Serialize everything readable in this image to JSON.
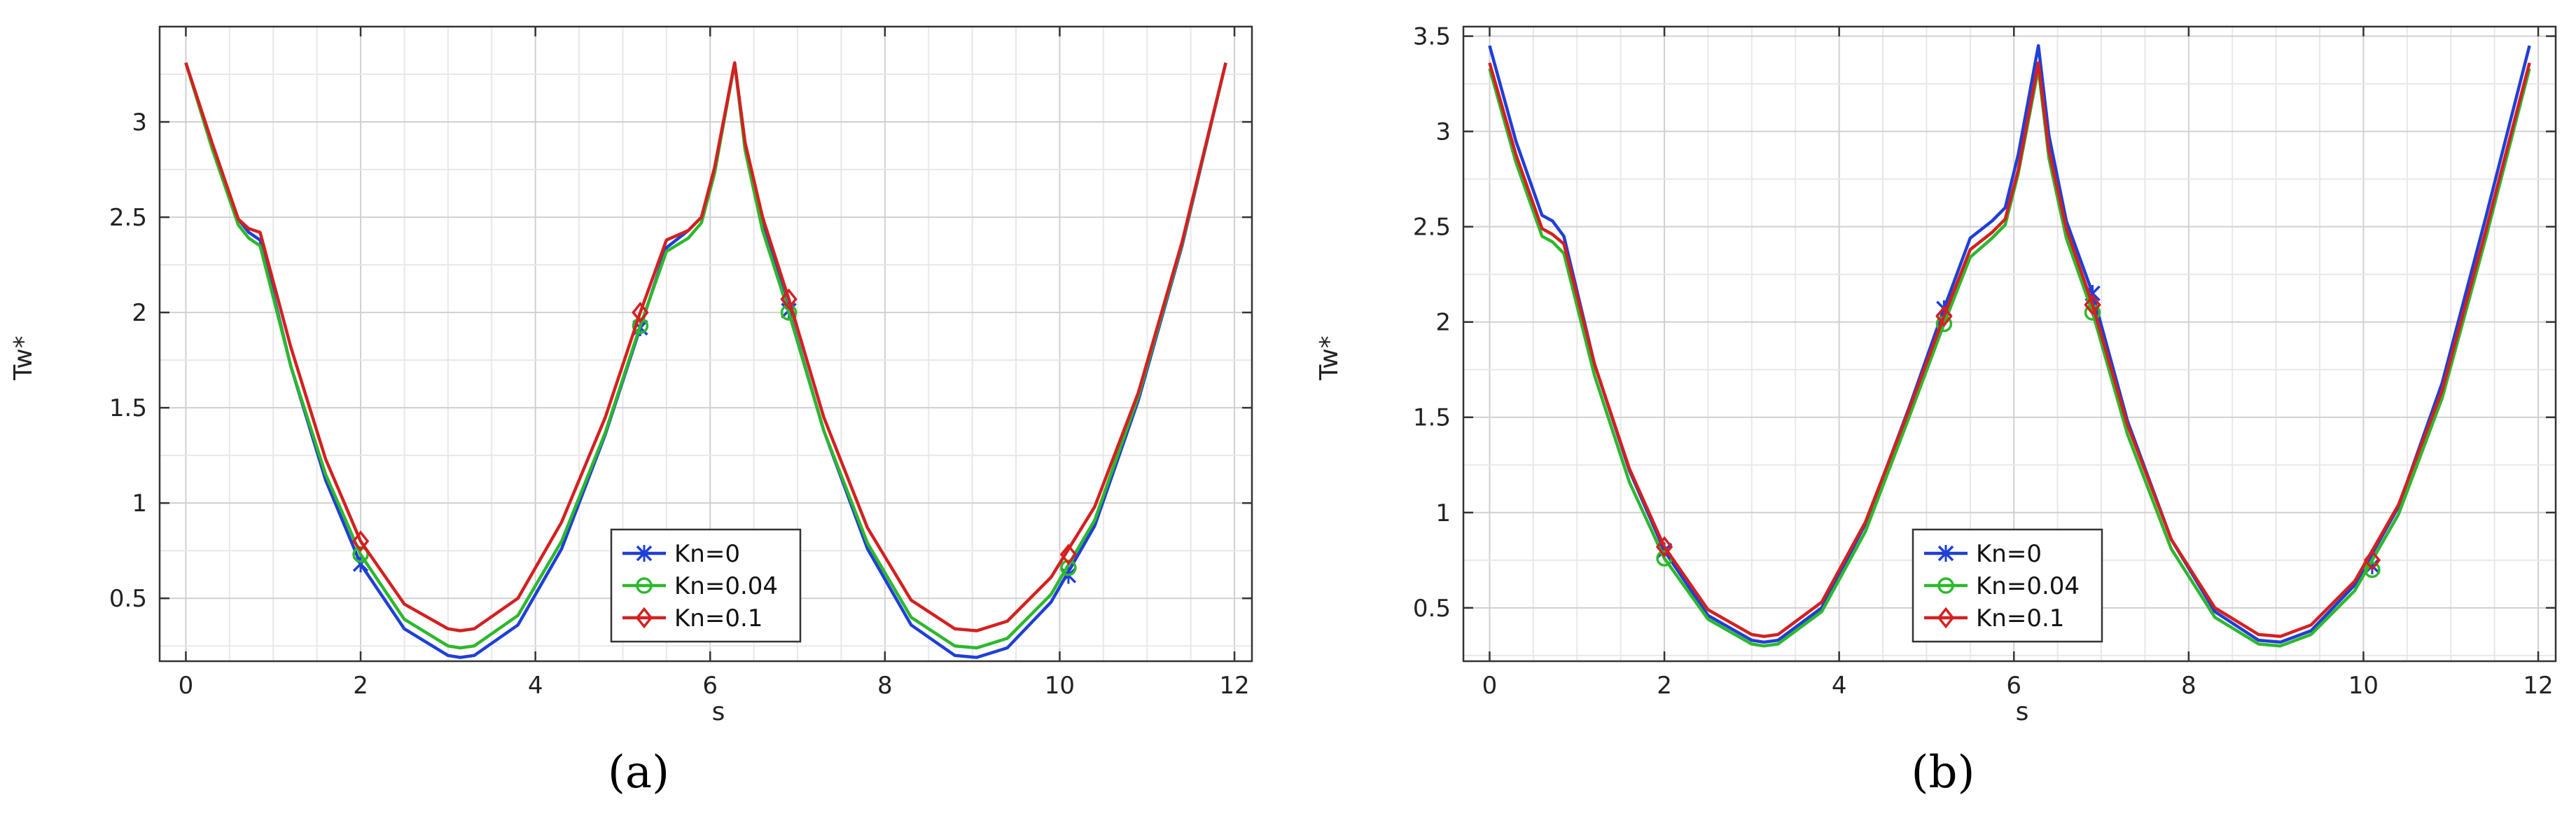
{
  "chart_data": [
    {
      "type": "line",
      "panel_label": "(a)",
      "xlabel": "s",
      "ylabel": "Tw*",
      "xlim": [
        -0.3,
        12.2
      ],
      "ylim": [
        0.17,
        3.5
      ],
      "xticks": [
        "0",
        "2",
        "4",
        "6",
        "8",
        "10",
        "12"
      ],
      "yticks": [
        "0.5",
        "1",
        "1.5",
        "2",
        "2.5",
        "3"
      ],
      "grid": true,
      "legend_position": "bottom-center",
      "series": [
        {
          "name": "Kn=0",
          "color": "#1f3fd6",
          "marker": "x",
          "x": [
            0,
            0.3,
            0.6,
            0.72,
            0.85,
            1.2,
            1.6,
            2.0,
            2.5,
            3.0,
            3.14,
            3.3,
            3.8,
            4.3,
            4.8,
            5.2,
            5.5,
            5.75,
            5.9,
            6.05,
            6.28,
            6.4,
            6.6,
            6.9,
            7.3,
            7.8,
            8.3,
            8.8,
            9.05,
            9.4,
            9.9,
            10.4,
            10.9,
            11.4,
            11.9
          ],
          "y": [
            3.31,
            2.88,
            2.49,
            2.42,
            2.38,
            1.72,
            1.12,
            0.68,
            0.34,
            0.2,
            0.19,
            0.2,
            0.36,
            0.76,
            1.36,
            1.92,
            2.34,
            2.43,
            2.5,
            2.75,
            3.31,
            2.88,
            2.46,
            2.01,
            1.38,
            0.76,
            0.36,
            0.2,
            0.19,
            0.24,
            0.48,
            0.88,
            1.54,
            2.35,
            3.31
          ],
          "markers_x": [
            2.0,
            5.2,
            6.9,
            10.1
          ],
          "markers_y": [
            0.68,
            1.92,
            2.01,
            0.62
          ]
        },
        {
          "name": "Kn=0.04",
          "color": "#2db82d",
          "marker": "o",
          "x": [
            0,
            0.3,
            0.6,
            0.72,
            0.85,
            1.2,
            1.6,
            2.0,
            2.5,
            3.0,
            3.14,
            3.3,
            3.8,
            4.3,
            4.8,
            5.2,
            5.5,
            5.75,
            5.9,
            6.05,
            6.28,
            6.4,
            6.6,
            6.9,
            7.3,
            7.8,
            8.3,
            8.8,
            9.05,
            9.4,
            9.9,
            10.4,
            10.9,
            11.4,
            11.9
          ],
          "y": [
            3.31,
            2.86,
            2.46,
            2.39,
            2.35,
            1.72,
            1.15,
            0.73,
            0.39,
            0.25,
            0.24,
            0.25,
            0.41,
            0.8,
            1.37,
            1.93,
            2.32,
            2.39,
            2.47,
            2.73,
            3.31,
            2.85,
            2.43,
            2.0,
            1.38,
            0.79,
            0.4,
            0.25,
            0.24,
            0.29,
            0.52,
            0.91,
            1.56,
            2.36,
            3.31
          ],
          "markers_x": [
            2.0,
            5.2,
            6.9,
            10.1
          ],
          "markers_y": [
            0.73,
            1.93,
            2.0,
            0.66
          ]
        },
        {
          "name": "Kn=0.1",
          "color": "#d42020",
          "marker": "diamond",
          "x": [
            0,
            0.3,
            0.6,
            0.72,
            0.85,
            1.2,
            1.6,
            2.0,
            2.5,
            3.0,
            3.14,
            3.3,
            3.8,
            4.3,
            4.8,
            5.2,
            5.5,
            5.75,
            5.9,
            6.05,
            6.28,
            6.4,
            6.6,
            6.9,
            7.3,
            7.8,
            8.3,
            8.8,
            9.05,
            9.4,
            9.9,
            10.4,
            10.9,
            11.4,
            11.9
          ],
          "y": [
            3.31,
            2.89,
            2.49,
            2.44,
            2.42,
            1.82,
            1.23,
            0.8,
            0.47,
            0.34,
            0.33,
            0.34,
            0.5,
            0.9,
            1.45,
            2.0,
            2.38,
            2.43,
            2.5,
            2.76,
            3.31,
            2.89,
            2.5,
            2.07,
            1.45,
            0.87,
            0.49,
            0.34,
            0.33,
            0.38,
            0.61,
            0.98,
            1.58,
            2.37,
            3.31
          ],
          "markers_x": [
            2.0,
            5.2,
            6.9,
            10.1
          ],
          "markers_y": [
            0.8,
            2.0,
            2.07,
            0.73
          ]
        }
      ]
    },
    {
      "type": "line",
      "panel_label": "(b)",
      "xlabel": "s",
      "ylabel": "Tw*",
      "xlim": [
        -0.3,
        12.2
      ],
      "ylim": [
        0.22,
        3.55
      ],
      "xticks": [
        "0",
        "2",
        "4",
        "6",
        "8",
        "10",
        "12"
      ],
      "yticks": [
        "0.5",
        "1",
        "1.5",
        "2",
        "2.5",
        "3",
        "3.5"
      ],
      "grid": true,
      "legend_position": "bottom-center",
      "series": [
        {
          "name": "Kn=0",
          "color": "#1f3fd6",
          "marker": "x",
          "x": [
            0,
            0.3,
            0.6,
            0.72,
            0.85,
            1.2,
            1.6,
            2.0,
            2.5,
            3.0,
            3.14,
            3.3,
            3.8,
            4.3,
            4.8,
            5.2,
            5.5,
            5.75,
            5.9,
            6.05,
            6.28,
            6.4,
            6.6,
            6.9,
            7.3,
            7.8,
            8.3,
            8.8,
            9.05,
            9.4,
            9.9,
            10.4,
            10.9,
            11.4,
            11.9
          ],
          "y": [
            3.45,
            2.95,
            2.56,
            2.53,
            2.45,
            1.78,
            1.22,
            0.8,
            0.46,
            0.33,
            0.32,
            0.33,
            0.5,
            0.94,
            1.55,
            2.07,
            2.44,
            2.53,
            2.6,
            2.88,
            3.45,
            2.98,
            2.53,
            2.15,
            1.48,
            0.86,
            0.48,
            0.33,
            0.32,
            0.38,
            0.62,
            1.03,
            1.68,
            2.55,
            3.45
          ],
          "markers_x": [
            2.0,
            5.2,
            6.9,
            10.1
          ],
          "markers_y": [
            0.8,
            2.07,
            2.15,
            0.72
          ]
        },
        {
          "name": "Kn=0.04",
          "color": "#2db82d",
          "marker": "o",
          "x": [
            0,
            0.3,
            0.6,
            0.72,
            0.85,
            1.2,
            1.6,
            2.0,
            2.5,
            3.0,
            3.14,
            3.3,
            3.8,
            4.3,
            4.8,
            5.2,
            5.5,
            5.75,
            5.9,
            6.05,
            6.28,
            6.4,
            6.6,
            6.9,
            7.3,
            7.8,
            8.3,
            8.8,
            9.05,
            9.4,
            9.9,
            10.4,
            10.9,
            11.4,
            11.9
          ],
          "y": [
            3.33,
            2.84,
            2.45,
            2.42,
            2.36,
            1.72,
            1.16,
            0.76,
            0.44,
            0.31,
            0.3,
            0.31,
            0.48,
            0.9,
            1.5,
            1.99,
            2.34,
            2.44,
            2.51,
            2.78,
            3.33,
            2.86,
            2.44,
            2.05,
            1.41,
            0.81,
            0.45,
            0.31,
            0.3,
            0.36,
            0.59,
            0.99,
            1.6,
            2.44,
            3.33
          ],
          "markers_x": [
            2.0,
            5.2,
            6.9,
            10.1
          ],
          "markers_y": [
            0.76,
            1.99,
            2.05,
            0.7
          ]
        },
        {
          "name": "Kn=0.1",
          "color": "#d42020",
          "marker": "diamond",
          "x": [
            0,
            0.3,
            0.6,
            0.72,
            0.85,
            1.2,
            1.6,
            2.0,
            2.5,
            3.0,
            3.14,
            3.3,
            3.8,
            4.3,
            4.8,
            5.2,
            5.5,
            5.75,
            5.9,
            6.05,
            6.28,
            6.4,
            6.6,
            6.9,
            7.3,
            7.8,
            8.3,
            8.8,
            9.05,
            9.4,
            9.9,
            10.4,
            10.9,
            11.4,
            11.9
          ],
          "y": [
            3.36,
            2.88,
            2.49,
            2.46,
            2.41,
            1.78,
            1.23,
            0.82,
            0.49,
            0.36,
            0.35,
            0.36,
            0.53,
            0.95,
            1.54,
            2.03,
            2.38,
            2.47,
            2.54,
            2.8,
            3.36,
            2.9,
            2.49,
            2.09,
            1.46,
            0.86,
            0.5,
            0.36,
            0.35,
            0.41,
            0.64,
            1.04,
            1.64,
            2.48,
            3.36
          ],
          "markers_x": [
            2.0,
            5.2,
            6.9,
            10.1
          ],
          "markers_y": [
            0.82,
            2.03,
            2.09,
            0.75
          ]
        }
      ]
    }
  ]
}
